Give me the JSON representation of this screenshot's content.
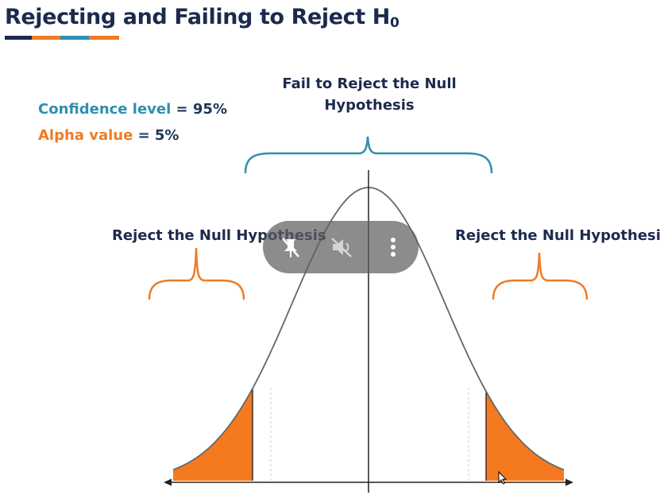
{
  "title": {
    "text": "Rejecting and Failing to Reject H",
    "subscript": "0"
  },
  "underline_colors": [
    "#1c2a4d",
    "#f07b24",
    "#2e8fb0",
    "#f07b24"
  ],
  "stats": {
    "confidence_label": "Confidence level",
    "confidence_value": " = 95%",
    "alpha_label": "Alpha value",
    "alpha_value": " = 5%"
  },
  "labels": {
    "fail_line1": "Fail to Reject the Null",
    "fail_line2": "Hypothesis",
    "reject_left": "Reject the Null Hypothesis",
    "reject_right": "Reject the Null Hypothesis"
  },
  "colors": {
    "navy": "#1c2a4d",
    "teal": "#2e8fb0",
    "orange": "#f07b24",
    "curve": "#666666",
    "rejection_fill": "#f57a1f"
  },
  "overlay": {
    "buttons": [
      "pin-off-icon",
      "mute-icon",
      "more-vertical-icon"
    ]
  }
}
